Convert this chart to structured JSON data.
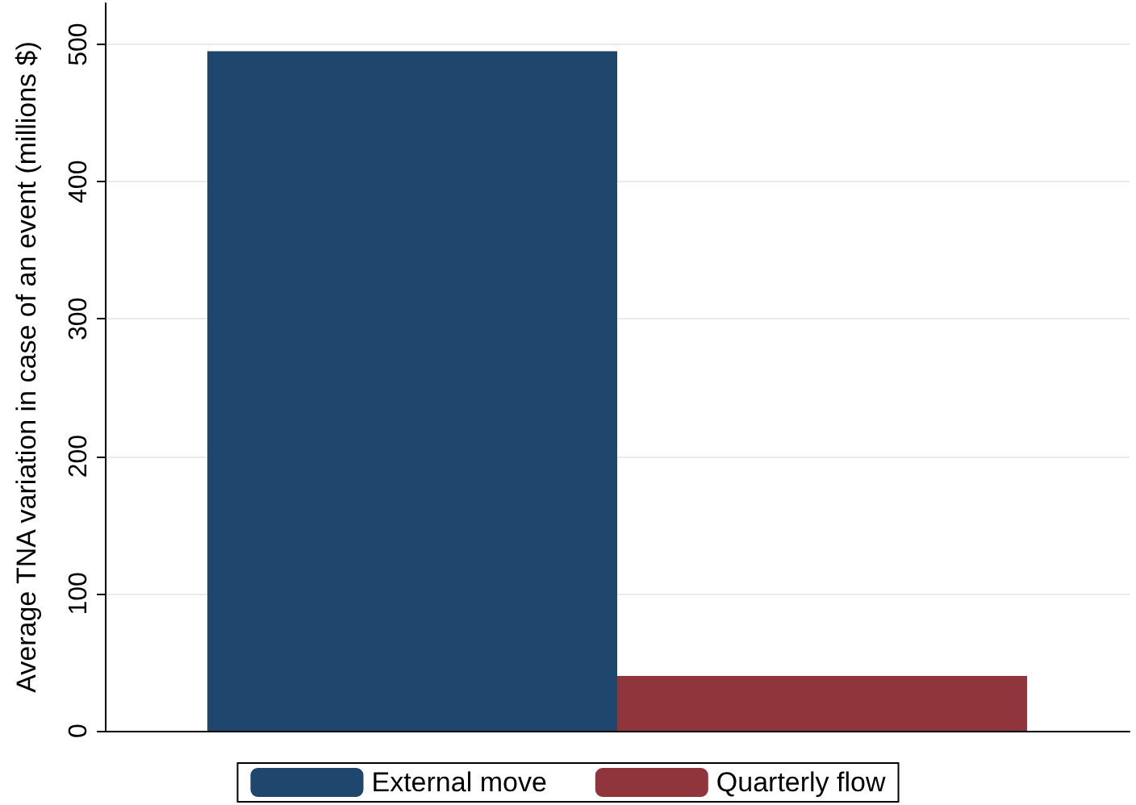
{
  "chart_data": {
    "type": "bar",
    "ylabel": "Average TNA variation in case of an event (millions $)",
    "categories": [
      null
    ],
    "series": [
      {
        "name": "External move",
        "color": "#1f476d",
        "values": [
          495
        ]
      },
      {
        "name": "Quarterly flow",
        "color": "#90353b",
        "values": [
          40
        ]
      }
    ],
    "ylim": [
      0,
      530
    ],
    "yticks": [
      0,
      100,
      200,
      300,
      400,
      500
    ],
    "grid": "y",
    "legend": "bottom"
  }
}
